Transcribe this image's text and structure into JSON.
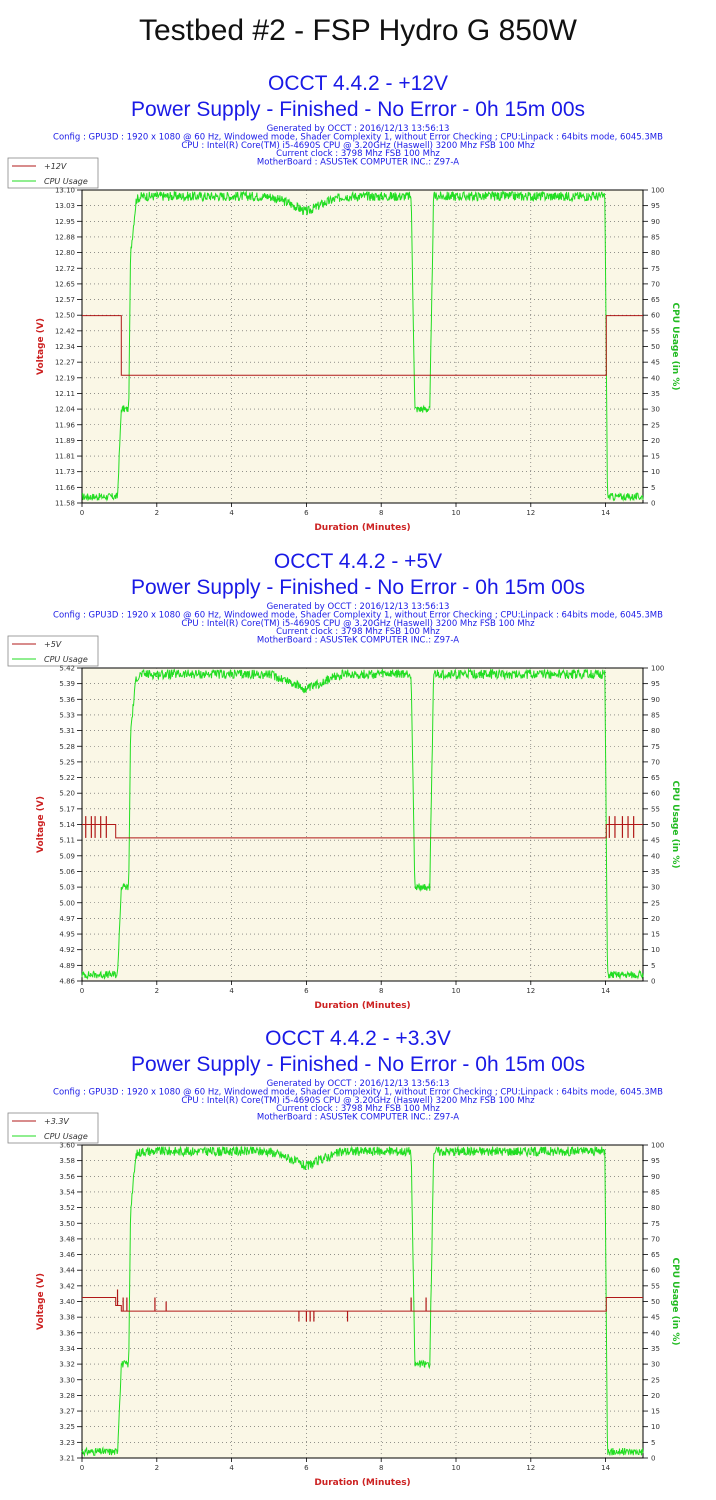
{
  "page_title": "Testbed #2 - FSP Hydro G 850W",
  "colors": {
    "voltage": "#b01818",
    "cpu": "#22dd22",
    "plot_bg": "#faf7e6",
    "title": "#1a1ae6"
  },
  "chart_data": [
    {
      "type": "line",
      "title": "OCCT 4.4.2 - +12V",
      "subtitle": "Power Supply - Finished - No Error - 0h 15m 00s",
      "info": [
        "Generated by OCCT : 2016/12/13 13:56:13",
        "Config : GPU3D : 1920 x 1080 @ 60 Hz, Windowed mode, Shader Complexity 1, without Error Checking ; CPU:Linpack : 64bits mode, 6045.3MB",
        "CPU : Intel(R) Core(TM) i5-4690S CPU @ 3.20GHz (Haswell) 3200 Mhz FSB 100 Mhz",
        "Current clock : 3798 Mhz FSB 100 Mhz",
        "MotherBoard : ASUSTeK COMPUTER INC.: Z97-A"
      ],
      "legend": [
        "+12V",
        "CPU Usage"
      ],
      "xlabel": "Duration (Minutes)",
      "ylabel": "Voltage (V)",
      "y2label": "CPU Usage (in %)",
      "xlim": [
        0,
        15
      ],
      "ylim": [
        11.58,
        13.1
      ],
      "y2lim": [
        0,
        100
      ],
      "xticks": [
        0,
        2,
        4,
        6,
        8,
        10,
        12,
        14
      ],
      "yticks": [
        "11.58",
        "11.66",
        "11.73",
        "11.81",
        "11.89",
        "11.96",
        "12.04",
        "12.11",
        "12.19",
        "12.27",
        "12.34",
        "12.42",
        "12.50",
        "12.57",
        "12.65",
        "12.72",
        "12.80",
        "12.88",
        "12.95",
        "13.03",
        "13.10"
      ],
      "y2ticks": [
        0,
        5,
        10,
        15,
        20,
        25,
        30,
        35,
        40,
        45,
        50,
        55,
        60,
        65,
        70,
        75,
        80,
        85,
        90,
        95,
        100
      ],
      "voltage_series": {
        "name": "+12V",
        "x": [
          0,
          1.05,
          1.05,
          14.02,
          14.02,
          15
        ],
        "y": [
          12.49,
          12.49,
          12.2,
          12.2,
          12.49,
          12.49
        ]
      },
      "cpu_series": {
        "name": "CPU Usage",
        "x": [
          0,
          0.95,
          1.05,
          1.25,
          1.3,
          1.45,
          1.6,
          5.0,
          5.5,
          6.0,
          6.5,
          7.0,
          8.8,
          8.9,
          9.3,
          9.4,
          13.98,
          14.05,
          15
        ],
        "y": [
          2,
          2,
          30,
          30,
          80,
          97,
          98,
          98,
          96,
          93,
          96,
          98,
          98,
          30,
          30,
          98,
          98,
          2,
          2
        ]
      },
      "voltage_glitches": []
    },
    {
      "type": "line",
      "title": "OCCT 4.4.2 - +5V",
      "subtitle": "Power Supply - Finished - No Error - 0h 15m 00s",
      "info": [
        "Generated by OCCT : 2016/12/13 13:56:13",
        "Config : GPU3D : 1920 x 1080 @ 60 Hz, Windowed mode, Shader Complexity 1, without Error Checking ; CPU:Linpack : 64bits mode, 6045.3MB",
        "CPU : Intel(R) Core(TM) i5-4690S CPU @ 3.20GHz (Haswell) 3200 Mhz FSB 100 Mhz",
        "Current clock : 3798 Mhz FSB 100 Mhz",
        "MotherBoard : ASUSTeK COMPUTER INC.: Z97-A"
      ],
      "legend": [
        "+5V",
        "CPU Usage"
      ],
      "xlabel": "Duration (Minutes)",
      "ylabel": "Voltage (V)",
      "y2label": "CPU Usage (in %)",
      "xlim": [
        0,
        15
      ],
      "ylim": [
        4.86,
        5.42
      ],
      "y2lim": [
        0,
        100
      ],
      "xticks": [
        0,
        2,
        4,
        6,
        8,
        10,
        12,
        14
      ],
      "yticks": [
        "4.86",
        "4.89",
        "4.92",
        "4.95",
        "4.97",
        "5.00",
        "5.03",
        "5.06",
        "5.09",
        "5.11",
        "5.14",
        "5.17",
        "5.20",
        "5.22",
        "5.25",
        "5.28",
        "5.31",
        "5.33",
        "5.36",
        "5.39",
        "5.42"
      ],
      "y2ticks": [
        0,
        5,
        10,
        15,
        20,
        25,
        30,
        35,
        40,
        45,
        50,
        55,
        60,
        65,
        70,
        75,
        80,
        85,
        90,
        95,
        100
      ],
      "voltage_series": {
        "name": "+5V",
        "x": [
          0,
          0.9,
          0.9,
          14.02,
          14.02,
          15
        ],
        "y": [
          5.14,
          5.14,
          5.116,
          5.116,
          5.14,
          5.14
        ]
      },
      "cpu_series": {
        "name": "CPU Usage",
        "x": [
          0,
          0.95,
          1.05,
          1.25,
          1.3,
          1.45,
          1.6,
          5.0,
          5.5,
          6.0,
          6.5,
          7.0,
          8.8,
          8.9,
          9.3,
          9.4,
          13.98,
          14.05,
          15
        ],
        "y": [
          2,
          2,
          30,
          30,
          80,
          97,
          98,
          98,
          96,
          93,
          96,
          98,
          98,
          30,
          30,
          98,
          98,
          2,
          2
        ]
      },
      "voltage_glitches": [
        {
          "x": 0.1,
          "low": 5.116,
          "high": 5.155
        },
        {
          "x": 0.25,
          "low": 5.116,
          "high": 5.155
        },
        {
          "x": 0.35,
          "low": 5.116,
          "high": 5.155
        },
        {
          "x": 0.5,
          "low": 5.116,
          "high": 5.155
        },
        {
          "x": 0.65,
          "low": 5.116,
          "high": 5.155
        },
        {
          "x": 14.1,
          "low": 5.116,
          "high": 5.155
        },
        {
          "x": 14.25,
          "low": 5.116,
          "high": 5.155
        },
        {
          "x": 14.45,
          "low": 5.116,
          "high": 5.155
        },
        {
          "x": 14.6,
          "low": 5.116,
          "high": 5.155
        },
        {
          "x": 14.75,
          "low": 5.116,
          "high": 5.155
        }
      ]
    },
    {
      "type": "line",
      "title": "OCCT 4.4.2 - +3.3V",
      "subtitle": "Power Supply - Finished - No Error - 0h 15m 00s",
      "info": [
        "Generated by OCCT : 2016/12/13 13:56:13",
        "Config : GPU3D : 1920 x 1080 @ 60 Hz, Windowed mode, Shader Complexity 1, without Error Checking ; CPU:Linpack : 64bits mode, 6045.3MB",
        "CPU : Intel(R) Core(TM) i5-4690S CPU @ 3.20GHz (Haswell) 3200 Mhz FSB 100 Mhz",
        "Current clock : 3798 Mhz FSB 100 Mhz",
        "MotherBoard : ASUSTeK COMPUTER INC.: Z97-A"
      ],
      "legend": [
        "+3.3V",
        "CPU Usage"
      ],
      "xlabel": "Duration (Minutes)",
      "ylabel": "Voltage (V)",
      "y2label": "CPU Usage (in %)",
      "xlim": [
        0,
        15
      ],
      "ylim": [
        3.21,
        3.6
      ],
      "y2lim": [
        0,
        100
      ],
      "xticks": [
        0,
        2,
        4,
        6,
        8,
        10,
        12,
        14
      ],
      "yticks": [
        "3.21",
        "3.23",
        "3.25",
        "3.27",
        "3.28",
        "3.30",
        "3.32",
        "3.34",
        "3.36",
        "3.38",
        "3.40",
        "3.42",
        "3.44",
        "3.46",
        "3.48",
        "3.50",
        "3.52",
        "3.54",
        "3.56",
        "3.58",
        "3.60"
      ],
      "y2ticks": [
        0,
        5,
        10,
        15,
        20,
        25,
        30,
        35,
        40,
        45,
        50,
        55,
        60,
        65,
        70,
        75,
        80,
        85,
        90,
        95,
        100
      ],
      "voltage_series": {
        "name": "+3.3V",
        "x": [
          0,
          0.9,
          0.9,
          1.05,
          1.05,
          14.02,
          14.02,
          15
        ],
        "y": [
          3.41,
          3.41,
          3.4,
          3.4,
          3.393,
          3.393,
          3.41,
          3.41
        ]
      },
      "cpu_series": {
        "name": "CPU Usage",
        "x": [
          0,
          0.95,
          1.05,
          1.25,
          1.3,
          1.45,
          1.6,
          5.0,
          5.5,
          6.0,
          6.5,
          7.0,
          8.8,
          8.9,
          9.3,
          9.4,
          13.98,
          14.05,
          15
        ],
        "y": [
          2,
          2,
          30,
          30,
          80,
          97,
          98,
          98,
          96,
          93,
          96,
          98,
          98,
          30,
          30,
          98,
          98,
          2,
          2
        ]
      },
      "voltage_glitches": [
        {
          "x": 0.95,
          "low": 3.4,
          "high": 3.42
        },
        {
          "x": 1.1,
          "low": 3.393,
          "high": 3.41
        },
        {
          "x": 1.2,
          "low": 3.393,
          "high": 3.41
        },
        {
          "x": 1.95,
          "low": 3.393,
          "high": 3.41
        },
        {
          "x": 2.25,
          "low": 3.393,
          "high": 3.405
        },
        {
          "x": 5.8,
          "low": 3.38,
          "high": 3.393
        },
        {
          "x": 6.0,
          "low": 3.38,
          "high": 3.393
        },
        {
          "x": 6.1,
          "low": 3.38,
          "high": 3.393
        },
        {
          "x": 6.2,
          "low": 3.38,
          "high": 3.393
        },
        {
          "x": 7.1,
          "low": 3.38,
          "high": 3.393
        },
        {
          "x": 8.8,
          "low": 3.393,
          "high": 3.41
        },
        {
          "x": 9.2,
          "low": 3.393,
          "high": 3.41
        }
      ]
    }
  ]
}
